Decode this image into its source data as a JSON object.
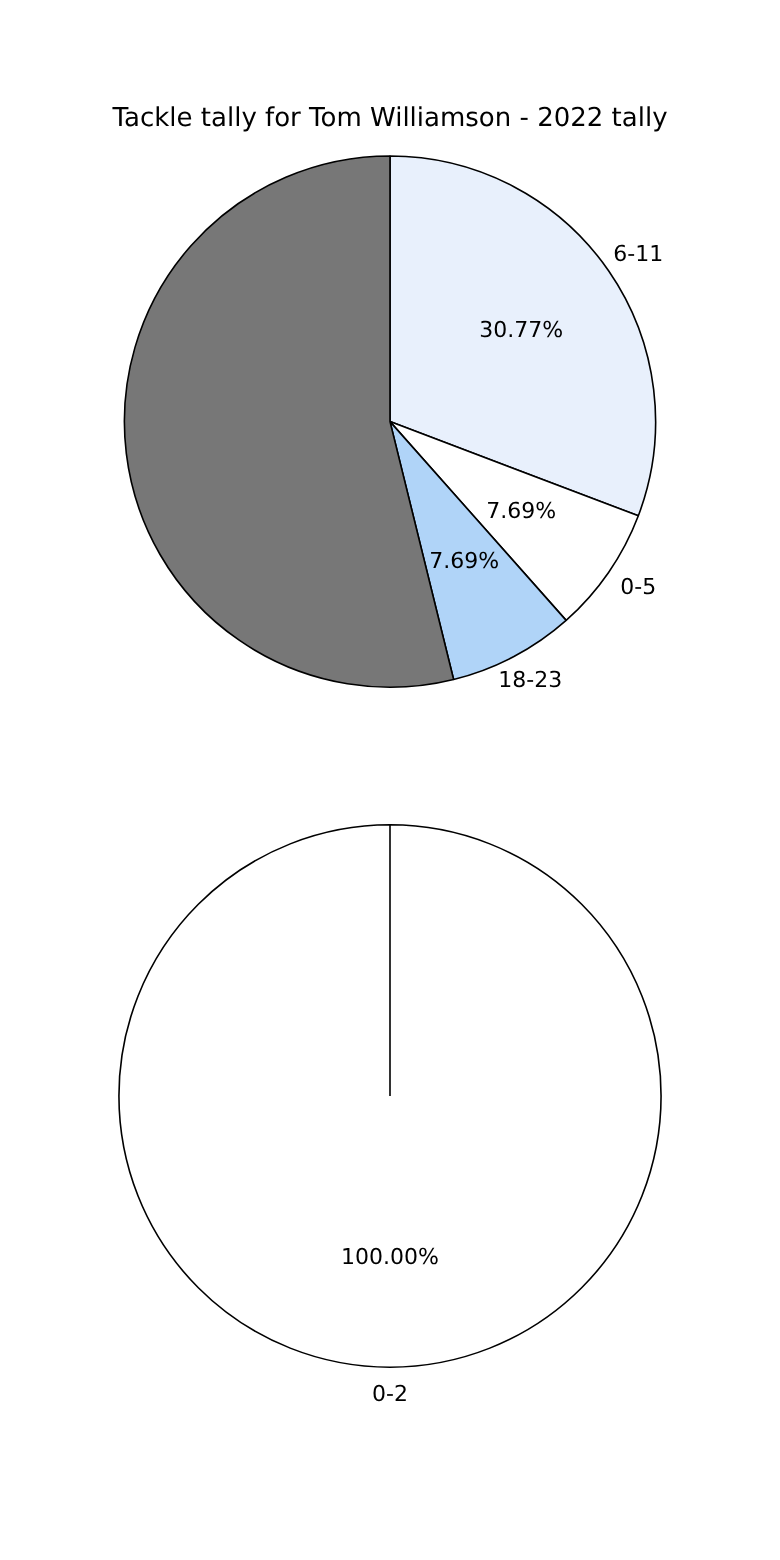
{
  "chart_data": [
    {
      "type": "pie",
      "title": "Tackle tally for Tom Williamson - 2022 tally",
      "categories": [
        "6-11",
        "0-5",
        "18-23",
        null
      ],
      "values": [
        30.77,
        7.69,
        7.69,
        53.85
      ],
      "colors": [
        "#e8f0fc",
        "#ffffff",
        "#b0d4f8",
        "#777777"
      ],
      "value_labels": [
        "30.77%",
        "7.69%",
        "7.69%",
        null
      ]
    },
    {
      "type": "pie",
      "categories": [
        "0-2"
      ],
      "values": [
        100
      ],
      "colors": [
        "#ffffff"
      ],
      "value_labels": [
        "100.00%"
      ]
    }
  ]
}
